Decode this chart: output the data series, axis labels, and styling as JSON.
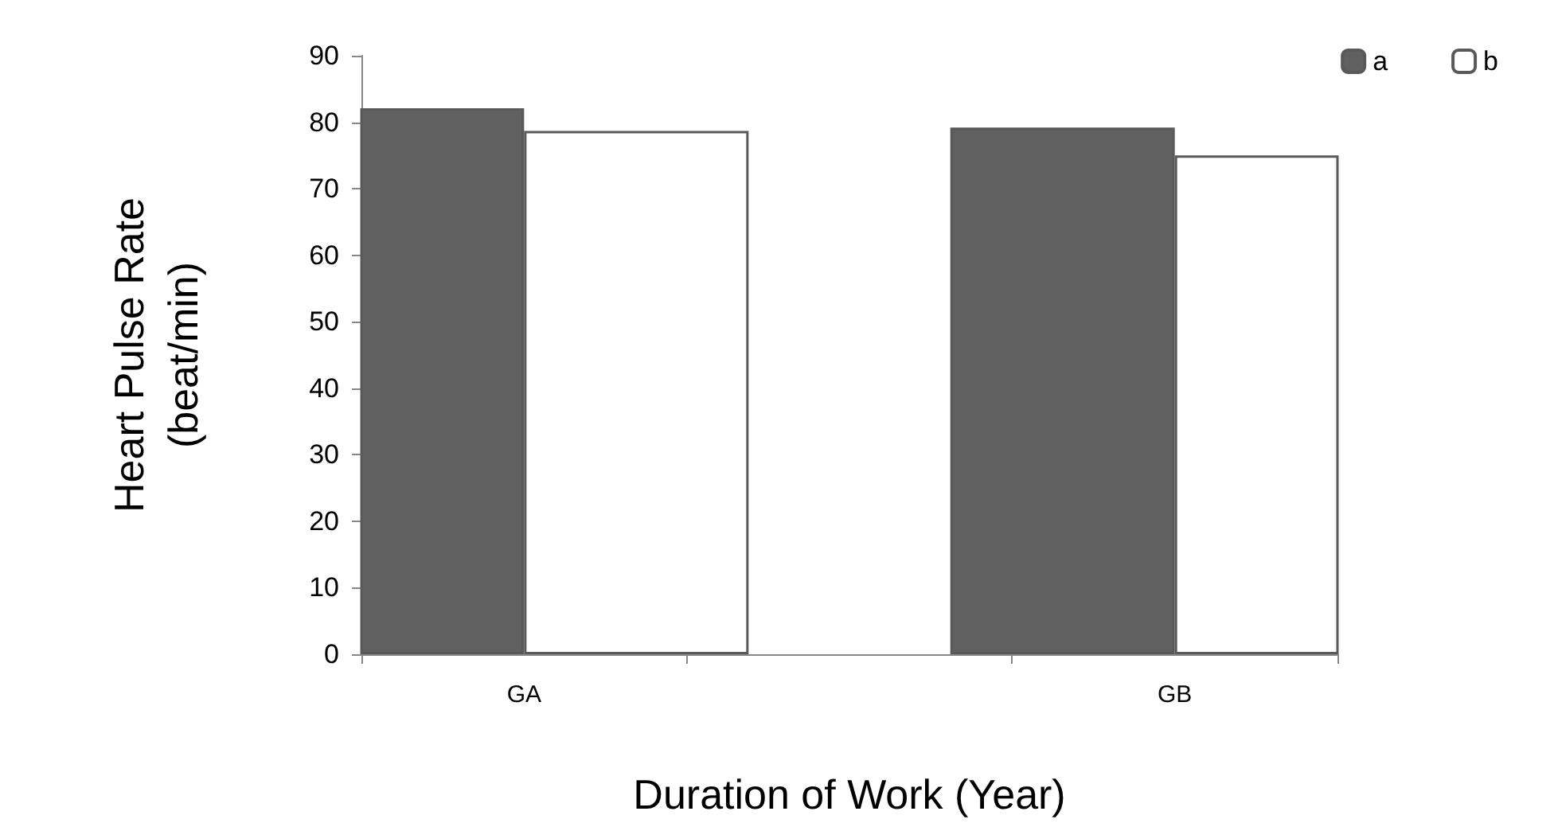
{
  "chart_data": {
    "type": "bar",
    "xlabel": "Duration of Work (Year)",
    "ylabel": "Heart Pulse Rate\n(beat/min)",
    "categories": [
      "GA",
      null,
      "GB"
    ],
    "series": [
      {
        "name": "a",
        "color": "#606060",
        "values": [
          82.1,
          null,
          79.2
        ]
      },
      {
        "name": "b",
        "color": "#ffffff",
        "values": [
          78.7,
          null,
          75
        ]
      }
    ],
    "ylim": [
      0,
      90
    ],
    "yticks": [
      0,
      10,
      20,
      30,
      40,
      50,
      60,
      70,
      80,
      90
    ],
    "grid": false,
    "legend": "top right"
  }
}
